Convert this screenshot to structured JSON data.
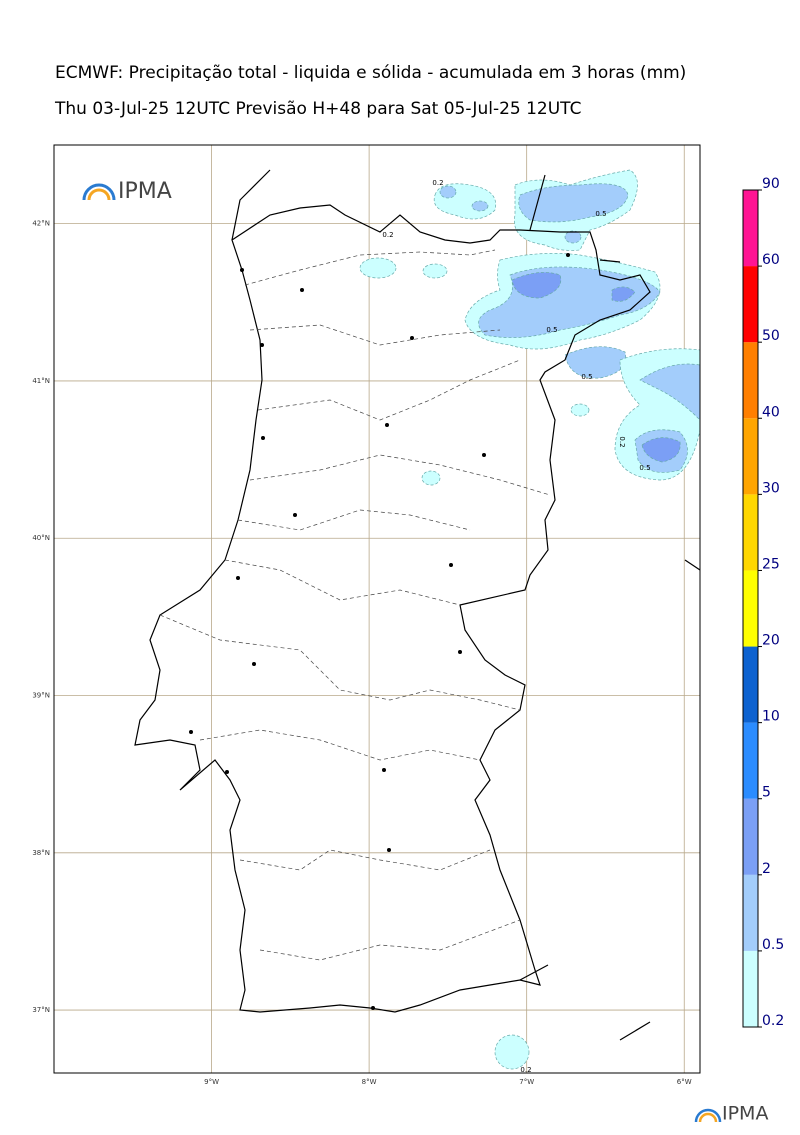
{
  "title": "ECMWF: Precipitação total - liquida e sólida - acumulada em 3 horas (mm)",
  "subtitle": "Thu 03-Jul-25 12UTC Previsão H+48 para Sat 05-Jul-25 12UTC",
  "logo_text": "IPMA",
  "map": {
    "xlim": [
      -10,
      -5.9
    ],
    "ylim": [
      36.6,
      42.5
    ],
    "xticks": [
      {
        "value": -9,
        "label": "9°W"
      },
      {
        "value": -8,
        "label": "8°W"
      },
      {
        "value": -7,
        "label": "7°W"
      },
      {
        "value": -6,
        "label": "6°W"
      }
    ],
    "yticks": [
      {
        "value": 42,
        "label": "42°N"
      },
      {
        "value": 41,
        "label": "41°N"
      },
      {
        "value": 40,
        "label": "40°N"
      },
      {
        "value": 39,
        "label": "39°N"
      },
      {
        "value": 38,
        "label": "38°N"
      },
      {
        "value": 37,
        "label": "37°N"
      }
    ],
    "contour_labels": [
      0.2,
      0.5,
      0.2,
      0.5,
      0.5,
      0.2,
      0.5,
      0.2
    ]
  },
  "colorbar": {
    "levels": [
      0.2,
      0.5,
      2,
      5,
      10,
      20,
      25,
      30,
      40,
      50,
      60,
      90
    ],
    "colors": [
      "#ccffff",
      "#a3cdfb",
      "#7b9ff5",
      "#2b8cff",
      "#0d62d0",
      "#ffff00",
      "#ffd700",
      "#ffa500",
      "#ff7f00",
      "#ff0000",
      "#ff1493"
    ]
  }
}
